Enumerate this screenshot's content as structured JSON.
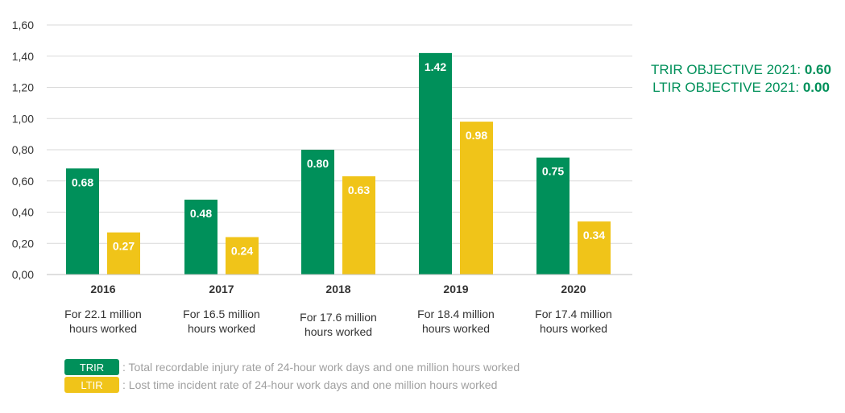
{
  "colors": {
    "trir": "#00905a",
    "ltir": "#f0c419",
    "grid": "#d9d9d9",
    "text": "#333333",
    "legend_text": "#a0a0a0"
  },
  "chart_data": {
    "type": "bar",
    "categories": [
      "2016",
      "2017",
      "2018",
      "2019",
      "2020"
    ],
    "series": [
      {
        "name": "TRIR",
        "values": [
          0.68,
          0.48,
          0.8,
          1.42,
          0.75
        ],
        "labels": [
          "0.68",
          "0.48",
          "0.80",
          "1.42",
          "0.75"
        ]
      },
      {
        "name": "LTIR",
        "values": [
          0.27,
          0.24,
          0.63,
          0.98,
          0.34
        ],
        "labels": [
          "0.27",
          "0.24",
          "0.63",
          "0.98",
          "0.34"
        ]
      }
    ],
    "ylim": [
      0,
      1.6
    ],
    "yticks": [
      "0,00",
      "0,20",
      "0,40",
      "0,60",
      "0,80",
      "1,00",
      "1,20",
      "1,40",
      "1,60"
    ],
    "grid": true,
    "category_notes": [
      [
        "For 22.1 million",
        "hours worked"
      ],
      [
        "For 16.5 million",
        "hours worked"
      ],
      [
        "For 17.6 million",
        "hours worked"
      ],
      [
        "For 18.4 million",
        "hours worked"
      ],
      [
        "For 17.4 million",
        "hours worked"
      ]
    ],
    "legend": [
      {
        "key": "TRIR",
        "description": ": Total recordable injury rate of 24-hour work days and one million hours worked"
      },
      {
        "key": "LTIR",
        "description": ": Lost time incident rate of 24-hour work days and one million hours worked"
      }
    ],
    "legend_position": "bottom-left"
  },
  "objectives": {
    "trir_label": "TRIR OBJECTIVE 2021:",
    "trir_value": "0.60",
    "ltir_label": "LTIR OBJECTIVE 2021:",
    "ltir_value": "0.00"
  }
}
